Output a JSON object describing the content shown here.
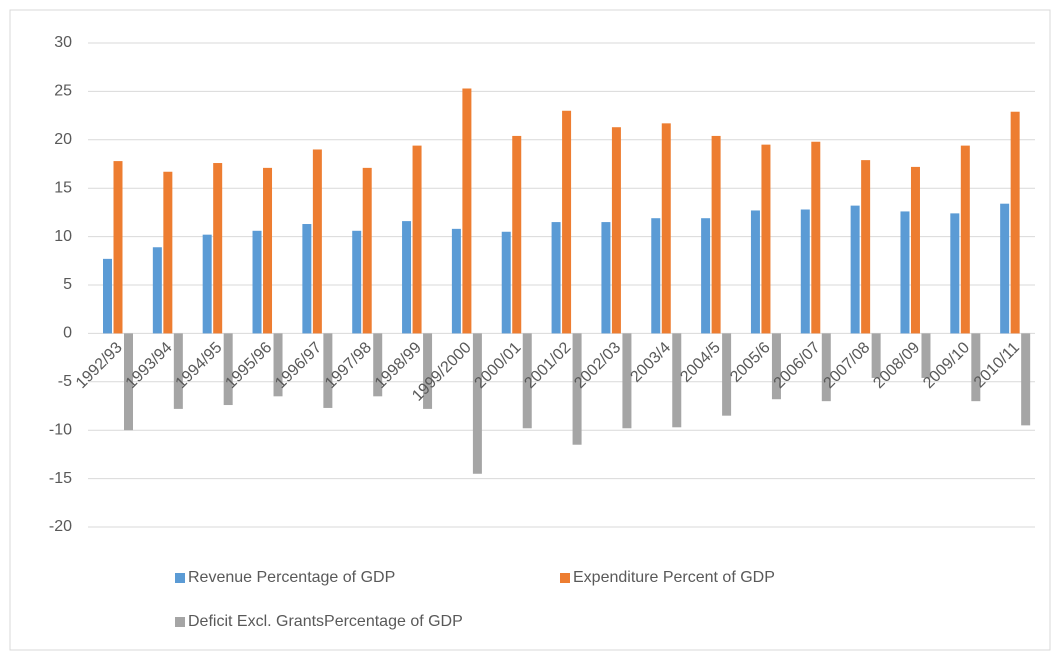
{
  "chart_data": {
    "type": "bar",
    "categories": [
      "1992/93",
      "1993/94",
      "1994/95",
      "1995/96",
      "1996/97",
      "1997/98",
      "1998/99",
      "1999/2000",
      "2000/01",
      "2001/02",
      "2002/03",
      "2003/4",
      "2004/5",
      "2005/6",
      "2006/07",
      "2007/08",
      "2008/09",
      "2009/10",
      "2010/11"
    ],
    "series": [
      {
        "name": "Revenue Percentage of GDP",
        "color": "#5b9bd5",
        "values": [
          7.7,
          8.9,
          10.2,
          10.6,
          11.3,
          10.6,
          11.6,
          10.8,
          10.5,
          11.5,
          11.5,
          11.9,
          11.9,
          12.7,
          12.8,
          13.2,
          12.6,
          12.4,
          13.4
        ]
      },
      {
        "name": "Expenditure Percent of GDP",
        "color": "#ed7d31",
        "values": [
          17.8,
          16.7,
          17.6,
          17.1,
          19.0,
          17.1,
          19.4,
          25.3,
          20.4,
          23.0,
          21.3,
          21.7,
          20.4,
          19.5,
          19.8,
          17.9,
          17.2,
          19.4,
          22.9
        ]
      },
      {
        "name": "Deficit Excl. GrantsPercentage of GDP",
        "color": "#a5a5a5",
        "values": [
          -10.0,
          -7.8,
          -7.4,
          -6.5,
          -7.7,
          -6.5,
          -7.8,
          -14.5,
          -9.8,
          -11.5,
          -9.8,
          -9.7,
          -8.5,
          -6.8,
          -7.0,
          -4.6,
          -4.6,
          -7.0,
          -9.5
        ]
      }
    ],
    "ylim": [
      -20,
      30
    ],
    "yticks": [
      -20,
      -15,
      -10,
      -5,
      0,
      5,
      10,
      15,
      20,
      25,
      30
    ],
    "grid": true
  }
}
